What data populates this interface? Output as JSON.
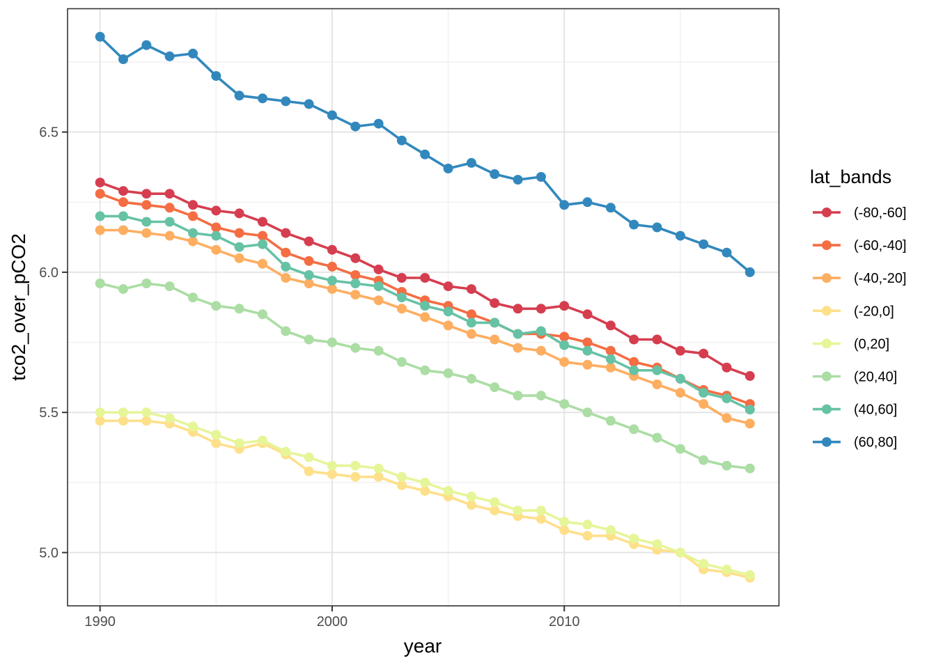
{
  "chart_data": {
    "type": "line",
    "title": "",
    "xlabel": "year",
    "ylabel": "tco2_over_pCO2",
    "legend_title": "lat_bands",
    "legend_position": "right",
    "grid": "major+minor",
    "x_domain": [
      1988.6,
      2019.25
    ],
    "y_domain": [
      4.81,
      6.94
    ],
    "x_ticks": [
      1990,
      2000,
      2010
    ],
    "x_tick_labels": [
      "1990",
      "2000",
      "2010"
    ],
    "x_minor_ticks": [
      1995,
      2005,
      2015
    ],
    "y_ticks": [
      5.0,
      5.5,
      6.0,
      6.5
    ],
    "y_tick_labels": [
      "5.0",
      "5.5",
      "6.0",
      "6.5"
    ],
    "y_minor_ticks": [
      5.25,
      5.75,
      6.25,
      6.75
    ],
    "x": [
      1990,
      1991,
      1992,
      1993,
      1994,
      1995,
      1996,
      1997,
      1998,
      1999,
      2000,
      2001,
      2002,
      2003,
      2004,
      2005,
      2006,
      2007,
      2008,
      2009,
      2010,
      2011,
      2012,
      2013,
      2014,
      2015,
      2016,
      2017,
      2018
    ],
    "series": [
      {
        "name": "(-80,-60]",
        "color": "#d53e4f",
        "values": [
          6.32,
          6.29,
          6.28,
          6.28,
          6.24,
          6.22,
          6.21,
          6.18,
          6.14,
          6.11,
          6.08,
          6.05,
          6.01,
          5.98,
          5.98,
          5.95,
          5.94,
          5.89,
          5.87,
          5.87,
          5.88,
          5.85,
          5.81,
          5.76,
          5.76,
          5.72,
          5.71,
          5.66,
          5.63
        ]
      },
      {
        "name": "(-60,-40]",
        "color": "#f46d43",
        "values": [
          6.28,
          6.25,
          6.24,
          6.23,
          6.2,
          6.16,
          6.14,
          6.13,
          6.07,
          6.04,
          6.02,
          5.99,
          5.97,
          5.93,
          5.9,
          5.88,
          5.85,
          5.82,
          5.78,
          5.78,
          5.77,
          5.75,
          5.72,
          5.68,
          5.66,
          5.62,
          5.58,
          5.56,
          5.53
        ]
      },
      {
        "name": "(-40,-20]",
        "color": "#fdae61",
        "values": [
          6.15,
          6.15,
          6.14,
          6.13,
          6.11,
          6.08,
          6.05,
          6.03,
          5.98,
          5.96,
          5.94,
          5.92,
          5.9,
          5.87,
          5.84,
          5.81,
          5.78,
          5.76,
          5.73,
          5.72,
          5.68,
          5.67,
          5.66,
          5.63,
          5.6,
          5.57,
          5.53,
          5.48,
          5.46
        ]
      },
      {
        "name": "(-20,0]",
        "color": "#fee08b",
        "values": [
          5.47,
          5.47,
          5.47,
          5.46,
          5.43,
          5.39,
          5.37,
          5.39,
          5.35,
          5.29,
          5.28,
          5.27,
          5.27,
          5.24,
          5.22,
          5.2,
          5.17,
          5.15,
          5.13,
          5.12,
          5.08,
          5.06,
          5.06,
          5.03,
          5.01,
          5.0,
          4.94,
          4.93,
          4.91
        ]
      },
      {
        "name": "(0,20]",
        "color": "#e6f598",
        "values": [
          5.5,
          5.5,
          5.5,
          5.48,
          5.45,
          5.42,
          5.39,
          5.4,
          5.36,
          5.34,
          5.31,
          5.31,
          5.3,
          5.27,
          5.25,
          5.22,
          5.2,
          5.18,
          5.15,
          5.15,
          5.11,
          5.1,
          5.08,
          5.05,
          5.03,
          5.0,
          4.96,
          4.94,
          4.92
        ]
      },
      {
        "name": "(20,40]",
        "color": "#abdda4",
        "values": [
          5.96,
          5.94,
          5.96,
          5.95,
          5.91,
          5.88,
          5.87,
          5.85,
          5.79,
          5.76,
          5.75,
          5.73,
          5.72,
          5.68,
          5.65,
          5.64,
          5.62,
          5.59,
          5.56,
          5.56,
          5.53,
          5.5,
          5.47,
          5.44,
          5.41,
          5.37,
          5.33,
          5.31,
          5.3
        ]
      },
      {
        "name": "(40,60]",
        "color": "#66c2a5",
        "values": [
          6.2,
          6.2,
          6.18,
          6.18,
          6.14,
          6.13,
          6.09,
          6.1,
          6.02,
          5.99,
          5.97,
          5.96,
          5.95,
          5.91,
          5.88,
          5.86,
          5.82,
          5.82,
          5.78,
          5.79,
          5.74,
          5.72,
          5.69,
          5.65,
          5.65,
          5.62,
          5.57,
          5.55,
          5.51
        ]
      },
      {
        "name": "(60,80]",
        "color": "#3288bd",
        "values": [
          6.84,
          6.76,
          6.81,
          6.77,
          6.78,
          6.7,
          6.63,
          6.62,
          6.61,
          6.6,
          6.56,
          6.52,
          6.53,
          6.47,
          6.42,
          6.37,
          6.39,
          6.35,
          6.33,
          6.34,
          6.24,
          6.25,
          6.23,
          6.17,
          6.16,
          6.13,
          6.1,
          6.07,
          6.0
        ]
      }
    ],
    "style_colors": {
      "panel_border": "#333333",
      "tick_mark": "#333333",
      "major_grid": "#e4e4e4",
      "minor_grid": "#f1f1f1",
      "tick_text": "#4d4d4d"
    }
  }
}
